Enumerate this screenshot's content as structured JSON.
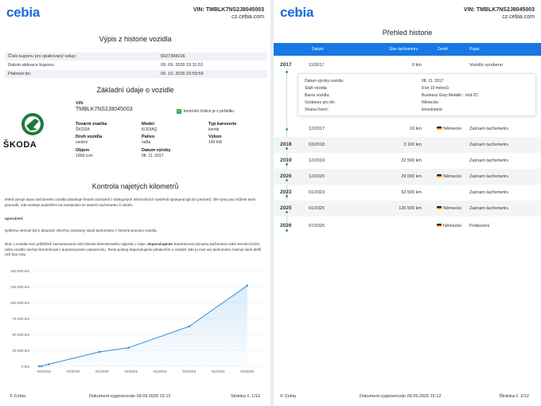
{
  "left": {
    "logo": "cebia",
    "vin_line": "VIN: TMBLK7NS2J8045003",
    "site": "cz.cebia.com",
    "title_history": "Výpis z historie vozidla",
    "info_rows": [
      {
        "k": "Číslo kuponu pro opakovaný vstup:",
        "v": "6927388106"
      },
      {
        "k": "Datum aktivace kuponu:",
        "v": "09. 09. 2026 15:11:53"
      },
      {
        "k": "Platnost do:",
        "v": "09. 10. 2026 23:59:59"
      }
    ],
    "title_basic": "Základní údaje o vozidle",
    "brand_word": "ŠKODA",
    "vin_label": "VIN",
    "vin_value": "TMBLK7NS2J8045003",
    "vin_ok": "kontrolní číslice je v pořádku",
    "fields": [
      {
        "label": "Tovární značka",
        "value": "ŠKODA"
      },
      {
        "label": "Model",
        "value": "KODIAQ"
      },
      {
        "label": "Typ karoserie",
        "value": "kombi"
      },
      {
        "label": "Druh vozidla",
        "value": "osobní"
      },
      {
        "label": "Palivo",
        "value": "nafta"
      },
      {
        "label": "Výkon",
        "value": "140 kW"
      },
      {
        "label": "Objem",
        "value": "1968 ccm"
      },
      {
        "label": "Datum výroby",
        "value": "08. 11. 2017"
      }
    ],
    "title_km": "Kontrola najetých kilometrů",
    "para1": "ehled vývoje stavu tachometru vozidla obsahuje historii záznamů z dostupných informačních systémů spolupracujících partnerů. Ole vývoj alu můžete sami posoudit, zda existuje podezření na manipulaci se stavem tachometru či nikoliv.",
    "para2_head": "sporučení:",
    "para3": "systému nemusí být k dispozici všechny záznamy stavů tachometru z historie provozu vozidla.",
    "para4_a": "škuť u vozidla není průběžně zaznamenaná celá historie kilometrového nájezdu v čase, ",
    "para4_b": "doporučujeme",
    "para4_c": " zkontrolovat záznamy tachometru také servisní knize, nebo vozidlo nechat zkontrolovat v autorizovaném autoservisu. Tento postup doporučujeme především u vozidel, kde je mez ary tachometru časový úsek delší než dva roky.",
    "footer_left": "© Cebia",
    "footer_mid": "Dokument vygenerován 09.09.2026 15:12",
    "footer_right": "Stránka č.  1/12"
  },
  "chart_data": {
    "type": "line",
    "title": "",
    "xlabel": "",
    "ylabel": "",
    "x_ticks": [
      "01/2018",
      "01/2019",
      "01/2020",
      "01/2021",
      "01/2022",
      "01/2023",
      "01/2024",
      "01/2025"
    ],
    "y_ticks": [
      "0 km",
      "25 000 km",
      "50 000 km",
      "75 000 km",
      "100 000 km",
      "125 000 km",
      "150 000 km"
    ],
    "ylim": [
      0,
      150000
    ],
    "xlim": [
      "2017-08",
      "2025-08"
    ],
    "points": [
      {
        "x": "2017-11",
        "y": 0
      },
      {
        "x": "2017-12",
        "y": 10
      },
      {
        "x": "2018-03",
        "y": 3100
      },
      {
        "x": "2019-12",
        "y": 22500
      },
      {
        "x": "2020-12",
        "y": 29000
      },
      {
        "x": "2023-01",
        "y": 62500
      },
      {
        "x": "2025-01",
        "y": 126500
      }
    ],
    "grid": true,
    "color": "#2f8fdf"
  },
  "right": {
    "logo": "cebia",
    "vin_line": "VIN: TMBLK7NS2J8045003",
    "site": "cz.cebia.com",
    "title": "Přehled historie",
    "headers": {
      "date": "Datum",
      "km": "Stav tachometru",
      "country": "Země",
      "desc": "Popis"
    },
    "rows": [
      {
        "year": "2017",
        "date": "11/2017",
        "km": "0 km",
        "country": "",
        "desc": "Vozidlo vyrobeno"
      },
      {
        "year": "",
        "date": "12/2017",
        "km": "10 km",
        "country": "Německo",
        "desc": "Záznam tachometru"
      },
      {
        "year": "2018",
        "date": "03/2018",
        "km": "3 100 km",
        "country": "",
        "desc": "Záznam tachometru"
      },
      {
        "year": "2019",
        "date": "12/2019",
        "km": "22 500 km",
        "country": "",
        "desc": "Záznam tachometru"
      },
      {
        "year": "2020",
        "date": "12/2020",
        "km": "29 000 km",
        "country": "Německo",
        "desc": "Záznam tachometru"
      },
      {
        "year": "2023",
        "date": "01/2023",
        "km": "62 500 km",
        "country": "",
        "desc": "Záznam tachometru"
      },
      {
        "year": "2025",
        "date": "01/2025",
        "km": "126 500 km",
        "country": "Německo",
        "desc": "Záznam tachometru"
      },
      {
        "year": "2026",
        "date": "07/2026",
        "km": "",
        "country": "Německo",
        "desc": "Poškození"
      }
    ],
    "popup": [
      {
        "k": "Datum výroby vozidla:",
        "v": "08. 11. 2017"
      },
      {
        "k": "Stáří vozidla:",
        "v": "8 let 10 měsíců"
      },
      {
        "k": "Barva vozidla:",
        "v": "Business Grey Metallic - kód 2C"
      },
      {
        "k": "Vyrobeno pro trh:",
        "v": "Německo"
      },
      {
        "k": "Strana řízení:",
        "v": "levostranné"
      }
    ],
    "footer_left": "© Cebia",
    "footer_mid": "Dokument vygenerován 09.09.2026 15:12",
    "footer_right": "Stránka č.  2/12",
    "watermark": "pi"
  }
}
